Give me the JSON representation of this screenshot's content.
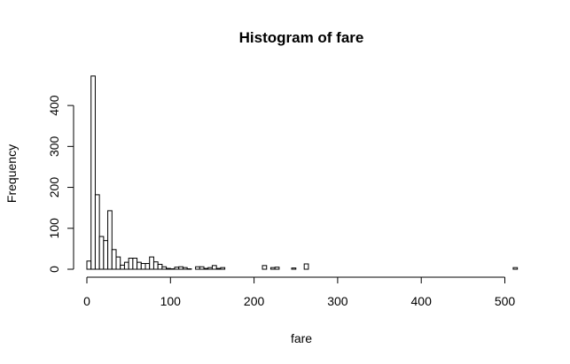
{
  "chart_data": {
    "type": "bar",
    "title": "Histogram of fare",
    "xlabel": "fare",
    "ylabel": "Frequency",
    "xlim": [
      0,
      515
    ],
    "ylim": [
      0,
      475
    ],
    "bin_width": 5,
    "x_ticks": [
      0,
      100,
      200,
      300,
      400,
      500
    ],
    "y_ticks": [
      0,
      100,
      200,
      300,
      400
    ],
    "bins": [
      {
        "x0": 0,
        "x1": 5,
        "count": 20
      },
      {
        "x0": 5,
        "x1": 10,
        "count": 472
      },
      {
        "x0": 10,
        "x1": 15,
        "count": 182
      },
      {
        "x0": 15,
        "x1": 20,
        "count": 80
      },
      {
        "x0": 20,
        "x1": 25,
        "count": 70
      },
      {
        "x0": 25,
        "x1": 30,
        "count": 143
      },
      {
        "x0": 30,
        "x1": 35,
        "count": 48
      },
      {
        "x0": 35,
        "x1": 40,
        "count": 30
      },
      {
        "x0": 40,
        "x1": 45,
        "count": 10
      },
      {
        "x0": 45,
        "x1": 50,
        "count": 17
      },
      {
        "x0": 50,
        "x1": 55,
        "count": 27
      },
      {
        "x0": 55,
        "x1": 60,
        "count": 27
      },
      {
        "x0": 60,
        "x1": 65,
        "count": 17
      },
      {
        "x0": 65,
        "x1": 70,
        "count": 14
      },
      {
        "x0": 70,
        "x1": 75,
        "count": 14
      },
      {
        "x0": 75,
        "x1": 80,
        "count": 30
      },
      {
        "x0": 80,
        "x1": 85,
        "count": 18
      },
      {
        "x0": 85,
        "x1": 90,
        "count": 12
      },
      {
        "x0": 90,
        "x1": 95,
        "count": 6
      },
      {
        "x0": 95,
        "x1": 100,
        "count": 2
      },
      {
        "x0": 100,
        "x1": 105,
        "count": 1
      },
      {
        "x0": 105,
        "x1": 110,
        "count": 5
      },
      {
        "x0": 110,
        "x1": 115,
        "count": 6
      },
      {
        "x0": 115,
        "x1": 120,
        "count": 4
      },
      {
        "x0": 120,
        "x1": 125,
        "count": 1
      },
      {
        "x0": 130,
        "x1": 135,
        "count": 6
      },
      {
        "x0": 135,
        "x1": 140,
        "count": 6
      },
      {
        "x0": 140,
        "x1": 145,
        "count": 2
      },
      {
        "x0": 145,
        "x1": 150,
        "count": 4
      },
      {
        "x0": 150,
        "x1": 155,
        "count": 9
      },
      {
        "x0": 155,
        "x1": 160,
        "count": 2
      },
      {
        "x0": 160,
        "x1": 165,
        "count": 4
      },
      {
        "x0": 210,
        "x1": 215,
        "count": 9
      },
      {
        "x0": 220,
        "x1": 225,
        "count": 4
      },
      {
        "x0": 225,
        "x1": 230,
        "count": 5
      },
      {
        "x0": 245,
        "x1": 250,
        "count": 3
      },
      {
        "x0": 260,
        "x1": 265,
        "count": 13
      },
      {
        "x0": 510,
        "x1": 515,
        "count": 4
      }
    ]
  }
}
